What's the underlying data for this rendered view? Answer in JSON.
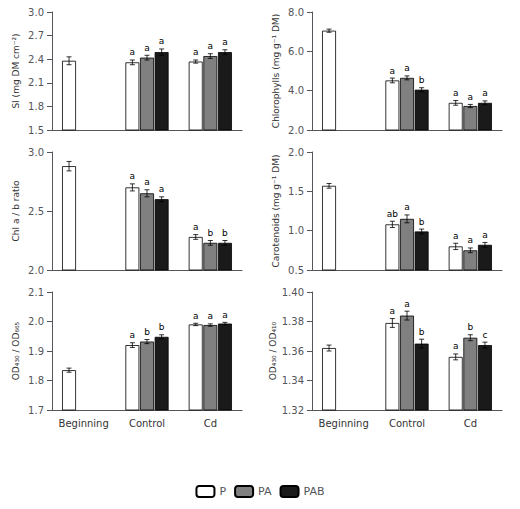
{
  "chart_data": [
    {
      "type": "bar",
      "ylabel": "SI (mg DM cm⁻²)",
      "grid": false,
      "tick_labels": "y",
      "categories": [
        "Beginning",
        "Control",
        "Cd"
      ],
      "ylim": [
        1.5,
        3.0
      ],
      "yticks": [
        1.5,
        1.8,
        2.1,
        2.4,
        2.7,
        {
          "value": 3.0,
          "label": "3.0"
        }
      ],
      "series": [
        {
          "name": "P",
          "color": "#ffffff",
          "values": [
            2.38,
            2.36,
            2.37
          ],
          "errors": [
            0.05,
            0.03,
            0.02
          ],
          "annotations": [
            null,
            "a",
            "a"
          ]
        },
        {
          "name": "PA",
          "color": "#808080",
          "values": [
            null,
            2.42,
            2.44
          ],
          "errors": [
            null,
            0.03,
            0.03
          ],
          "annotations": [
            null,
            "a",
            "a"
          ]
        },
        {
          "name": "PAB",
          "color": "#1a1a1a",
          "values": [
            null,
            2.49,
            2.49
          ],
          "errors": [
            null,
            0.04,
            0.03
          ],
          "annotations": [
            null,
            "a",
            "a"
          ]
        }
      ]
    },
    {
      "type": "bar",
      "ylabel": "Chlorophylls (mg g⁻¹ DM)",
      "grid": false,
      "tick_labels": "y",
      "categories": [
        "Beginning",
        "Control",
        "Cd"
      ],
      "ylim": [
        2.0,
        8.0
      ],
      "yticks": [
        {
          "value": 2.0,
          "label": "2.0"
        },
        {
          "value": 4.0,
          "label": "4.0"
        },
        {
          "value": 6.0,
          "label": "6.0"
        },
        {
          "value": 8.0,
          "label": "8.0"
        }
      ],
      "series": [
        {
          "name": "P",
          "color": "#ffffff",
          "values": [
            7.05,
            4.52,
            3.38
          ],
          "errors": [
            0.08,
            0.12,
            0.12
          ],
          "annotations": [
            null,
            "a",
            "a"
          ]
        },
        {
          "name": "PA",
          "color": "#808080",
          "values": [
            null,
            4.65,
            3.22
          ],
          "errors": [
            null,
            0.1,
            0.08
          ],
          "annotations": [
            null,
            "a",
            "a"
          ]
        },
        {
          "name": "PAB",
          "color": "#1a1a1a",
          "values": [
            null,
            4.05,
            3.38
          ],
          "errors": [
            null,
            0.1,
            0.1
          ],
          "annotations": [
            null,
            "b",
            "a"
          ]
        }
      ]
    },
    {
      "type": "bar",
      "ylabel": "Chl a / b ratio",
      "grid": false,
      "tick_labels": "y",
      "categories": [
        "Beginning",
        "Control",
        "Cd"
      ],
      "ylim": [
        2.0,
        3.0
      ],
      "yticks": [
        {
          "value": 2.0,
          "label": "2.0"
        },
        2.5,
        {
          "value": 3.0,
          "label": "3.0"
        }
      ],
      "series": [
        {
          "name": "P",
          "color": "#ffffff",
          "values": [
            2.88,
            2.7,
            2.28
          ],
          "errors": [
            0.04,
            0.03,
            0.02
          ],
          "annotations": [
            null,
            "a",
            "a"
          ]
        },
        {
          "name": "PA",
          "color": "#808080",
          "values": [
            null,
            2.65,
            2.23
          ],
          "errors": [
            null,
            0.03,
            0.02
          ],
          "annotations": [
            null,
            "a",
            "b"
          ]
        },
        {
          "name": "PAB",
          "color": "#1a1a1a",
          "values": [
            null,
            2.6,
            2.23
          ],
          "errors": [
            null,
            0.02,
            0.02
          ],
          "annotations": [
            null,
            "a",
            "b"
          ]
        }
      ]
    },
    {
      "type": "bar",
      "ylabel": "Carotenoids (mg g⁻¹ DM)",
      "grid": false,
      "tick_labels": "y",
      "categories": [
        "Beginning",
        "Control",
        "Cd"
      ],
      "ylim": [
        0.5,
        2.0
      ],
      "yticks": [
        0.5,
        {
          "value": 1.0,
          "label": "1.0"
        },
        1.5,
        {
          "value": 2.0,
          "label": "2.0"
        }
      ],
      "series": [
        {
          "name": "P",
          "color": "#ffffff",
          "values": [
            1.57,
            1.08,
            0.8
          ],
          "errors": [
            0.03,
            0.04,
            0.04
          ],
          "annotations": [
            null,
            "ab",
            "a"
          ]
        },
        {
          "name": "PA",
          "color": "#808080",
          "values": [
            null,
            1.15,
            0.75
          ],
          "errors": [
            null,
            0.05,
            0.03
          ],
          "annotations": [
            null,
            "a",
            "a"
          ]
        },
        {
          "name": "PAB",
          "color": "#1a1a1a",
          "values": [
            null,
            0.99,
            0.82
          ],
          "errors": [
            null,
            0.03,
            0.03
          ],
          "annotations": [
            null,
            "b",
            "a"
          ]
        }
      ]
    },
    {
      "type": "bar",
      "ylabel": "OD₄₃₀ / OD₆₆₅",
      "grid": false,
      "categories": [
        "Beginning",
        "Control",
        "Cd"
      ],
      "ylim": [
        1.7,
        2.1
      ],
      "yticks": [
        1.7,
        1.8,
        1.9,
        {
          "value": 2.0,
          "label": "2.0"
        },
        2.1
      ],
      "series": [
        {
          "name": "P",
          "color": "#ffffff",
          "values": [
            1.835,
            1.92,
            1.99
          ],
          "errors": [
            0.007,
            0.008,
            0.004
          ],
          "annotations": [
            null,
            "a",
            "a"
          ]
        },
        {
          "name": "PA",
          "color": "#808080",
          "values": [
            null,
            1.932,
            1.988
          ],
          "errors": [
            null,
            0.007,
            0.004
          ],
          "annotations": [
            null,
            "b",
            "a"
          ]
        },
        {
          "name": "PAB",
          "color": "#1a1a1a",
          "values": [
            null,
            1.948,
            1.993
          ],
          "errors": [
            null,
            0.007,
            0.004
          ],
          "annotations": [
            null,
            "b",
            "a"
          ]
        }
      ]
    },
    {
      "type": "bar",
      "ylabel": "OD₄₃₀ / OD₄₁₀",
      "grid": false,
      "categories": [
        "Beginning",
        "Control",
        "Cd"
      ],
      "ylim": [
        1.32,
        1.4
      ],
      "yticks": [
        1.32,
        1.34,
        1.36,
        1.38,
        {
          "value": 1.4,
          "label": "1.40"
        }
      ],
      "series": [
        {
          "name": "P",
          "color": "#ffffff",
          "values": [
            1.362,
            1.379,
            1.356
          ],
          "errors": [
            0.002,
            0.003,
            0.002
          ],
          "annotations": [
            null,
            "a",
            "a"
          ]
        },
        {
          "name": "PA",
          "color": "#808080",
          "values": [
            null,
            1.384,
            1.369
          ],
          "errors": [
            null,
            0.003,
            0.002
          ],
          "annotations": [
            null,
            "a",
            "b"
          ]
        },
        {
          "name": "PAB",
          "color": "#1a1a1a",
          "values": [
            null,
            1.365,
            1.364
          ],
          "errors": [
            null,
            0.003,
            0.002
          ],
          "annotations": [
            null,
            "b",
            "c"
          ]
        }
      ]
    }
  ]
}
